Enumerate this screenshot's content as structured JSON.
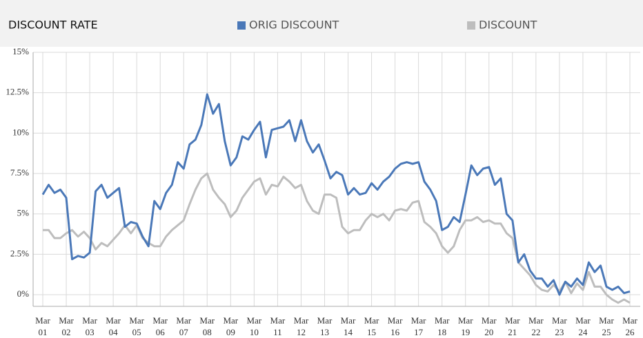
{
  "chart_data": {
    "type": "line",
    "title": "DISCOUNT RATE",
    "categories": [
      "Mar\n01",
      null,
      null,
      null,
      "Mar\n02",
      null,
      null,
      null,
      "Mar\n03",
      null,
      null,
      null,
      "Mar\n04",
      null,
      null,
      null,
      "Mar\n05",
      null,
      null,
      null,
      "Mar\n06",
      null,
      null,
      null,
      "Mar\n07",
      null,
      null,
      null,
      "Mar\n08",
      null,
      null,
      null,
      "Mar\n09",
      null,
      null,
      null,
      "Mar\n10",
      null,
      null,
      null,
      "Mar\n11",
      null,
      null,
      null,
      "Mar\n12",
      null,
      null,
      null,
      "Mar\n13",
      null,
      null,
      null,
      "Mar\n14",
      null,
      null,
      null,
      "Mar\n15",
      null,
      null,
      null,
      "Mar\n16",
      null,
      null,
      null,
      "Mar\n17",
      null,
      null,
      null,
      "Mar\n18",
      null,
      null,
      null,
      "Mar\n19",
      null,
      null,
      null,
      "Mar\n20",
      null,
      null,
      null,
      "Mar\n21",
      null,
      null,
      null,
      "Mar\n22",
      null,
      null,
      null,
      "Mar\n23",
      null,
      null,
      null,
      "Mar\n24",
      null,
      null,
      null,
      "Mar\n25",
      null,
      null,
      null,
      "Mar\n26"
    ],
    "series": [
      {
        "name": "ORIG DISCOUNT",
        "color": "#4a78b8",
        "values": [
          6.2,
          6.8,
          6.3,
          6.5,
          6.0,
          2.2,
          2.4,
          2.3,
          2.6,
          6.4,
          6.8,
          6.0,
          6.3,
          6.6,
          4.2,
          4.5,
          4.4,
          3.6,
          3.0,
          5.8,
          5.3,
          6.3,
          6.8,
          8.2,
          7.8,
          9.3,
          9.6,
          10.5,
          12.4,
          11.2,
          11.8,
          9.5,
          8.0,
          8.5,
          9.8,
          9.6,
          10.2,
          10.7,
          8.5,
          10.2,
          10.3,
          10.4,
          10.8,
          9.5,
          10.8,
          9.5,
          8.8,
          9.3,
          8.3,
          7.2,
          7.6,
          7.4,
          6.2,
          6.6,
          6.2,
          6.3,
          6.9,
          6.5,
          7.0,
          7.3,
          7.8,
          8.1,
          8.2,
          8.1,
          8.2,
          7.0,
          6.5,
          5.8,
          4.0,
          4.2,
          4.8,
          4.5,
          6.2,
          8.0,
          7.4,
          7.8,
          7.9,
          6.8,
          7.2,
          5.0,
          4.6,
          2.0,
          2.5,
          1.5,
          1.0,
          1.0,
          0.5,
          0.9,
          0.0,
          0.8,
          0.5,
          1.0,
          0.6,
          2.0,
          1.4,
          1.8,
          0.5,
          0.3,
          0.5,
          0.1,
          0.2
        ]
      },
      {
        "name": "DISCOUNT",
        "color": "#bdbdbd",
        "values": [
          4.0,
          4.0,
          3.5,
          3.5,
          3.8,
          4.0,
          3.6,
          3.9,
          3.5,
          2.8,
          3.2,
          3.0,
          3.4,
          3.8,
          4.3,
          3.8,
          4.3,
          3.5,
          3.2,
          3.0,
          3.0,
          3.6,
          4.0,
          4.3,
          4.6,
          5.6,
          6.5,
          7.2,
          7.5,
          6.5,
          6.0,
          5.6,
          4.8,
          5.2,
          6.0,
          6.5,
          7.0,
          7.2,
          6.2,
          6.8,
          6.7,
          7.3,
          7.0,
          6.6,
          6.8,
          5.8,
          5.2,
          5.0,
          6.2,
          6.2,
          6.0,
          4.2,
          3.8,
          4.0,
          4.0,
          4.6,
          5.0,
          4.8,
          5.0,
          4.6,
          5.2,
          5.3,
          5.2,
          5.7,
          5.8,
          4.5,
          4.2,
          3.8,
          3.0,
          2.6,
          3.0,
          4.0,
          4.6,
          4.6,
          4.8,
          4.5,
          4.6,
          4.4,
          4.4,
          3.8,
          3.5,
          2.0,
          1.6,
          1.2,
          0.6,
          0.3,
          0.2,
          0.6,
          0.2,
          0.8,
          0.1,
          0.7,
          0.3,
          1.4,
          0.5,
          0.5,
          0.0,
          -0.3,
          -0.5,
          -0.3,
          -0.5
        ]
      }
    ],
    "ylim": [
      -0.72,
      15
    ],
    "yticks": [
      {
        "value": 0,
        "label": "0%"
      },
      {
        "value": 2.5,
        "label": "2.5%"
      },
      {
        "value": 5,
        "label": "5%"
      },
      {
        "value": 7.5,
        "label": "7.5%"
      },
      {
        "value": 10,
        "label": "10%"
      },
      {
        "value": 12.5,
        "label": "12.5%"
      },
      {
        "value": 15,
        "label": "15%"
      }
    ],
    "grid": true
  }
}
